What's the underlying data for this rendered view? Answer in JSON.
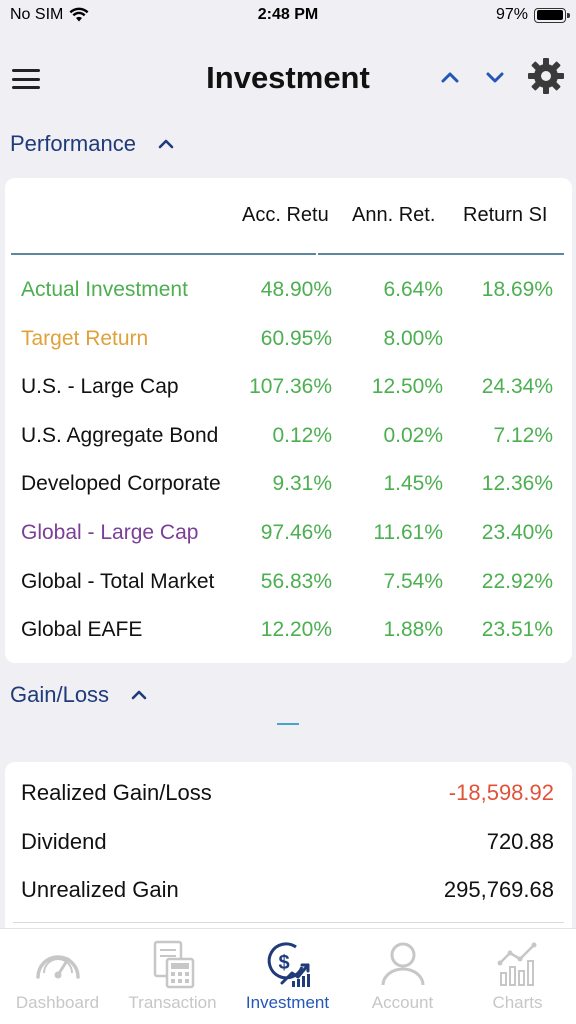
{
  "status_bar": {
    "carrier": "No SIM",
    "time": "2:48 PM",
    "battery": "97%",
    "battery_level": 0.97
  },
  "header": {
    "title": "Investment",
    "icons": [
      "menu-icon",
      "chevron-up-icon",
      "chevron-down-icon",
      "gear-icon"
    ]
  },
  "performance": {
    "section_label": "Performance",
    "columns": [
      "Acc. Retu",
      "Ann. Ret.",
      "Return SI"
    ],
    "rows": [
      {
        "name": "Actual Investment",
        "name_color": "#4caf50",
        "acc": "48.90%",
        "ann": "6.64%",
        "si": "18.69%"
      },
      {
        "name": "Target Return",
        "name_color": "#e0a13a",
        "acc": "60.95%",
        "ann": "8.00%",
        "si": ""
      },
      {
        "name": "U.S. - Large Cap",
        "name_color": "#111111",
        "acc": "107.36%",
        "ann": "12.50%",
        "si": "24.34%"
      },
      {
        "name": "U.S. Aggregate Bond",
        "name_color": "#111111",
        "acc": "0.12%",
        "ann": "0.02%",
        "si": "7.12%"
      },
      {
        "name": "Developed Corporate",
        "name_color": "#111111",
        "acc": "9.31%",
        "ann": "1.45%",
        "si": "12.36%"
      },
      {
        "name": "Global - Large Cap",
        "name_color": "#7b3f98",
        "acc": "97.46%",
        "ann": "11.61%",
        "si": "23.40%"
      },
      {
        "name": "Global - Total Market",
        "name_color": "#111111",
        "acc": "56.83%",
        "ann": "7.54%",
        "si": "22.92%"
      },
      {
        "name": "Global EAFE",
        "name_color": "#111111",
        "acc": "12.20%",
        "ann": "1.88%",
        "si": "23.51%"
      }
    ],
    "value_color": "#4caf50"
  },
  "gain_loss": {
    "section_label": "Gain/Loss",
    "rows": [
      {
        "label": "Realized Gain/Loss",
        "value": "-18,598.92",
        "value_color": "#e0533a"
      },
      {
        "label": "Dividend",
        "value": "720.88",
        "value_color": "#111111"
      },
      {
        "label": "Unrealized Gain",
        "value": "295,769.68",
        "value_color": "#111111"
      }
    ]
  },
  "tabs": [
    {
      "label": "Dashboard",
      "icon": "speedometer-icon",
      "active": false
    },
    {
      "label": "Transaction",
      "icon": "calculator-icon",
      "active": false
    },
    {
      "label": "Investment",
      "icon": "investment-icon",
      "active": true
    },
    {
      "label": "Account",
      "icon": "person-icon",
      "active": false
    },
    {
      "label": "Charts",
      "icon": "chart-icon",
      "active": false
    }
  ],
  "colors": {
    "accent": "#2456b8",
    "section_header": "#1f3b7a",
    "inactive_tab": "#c7c7c7"
  }
}
